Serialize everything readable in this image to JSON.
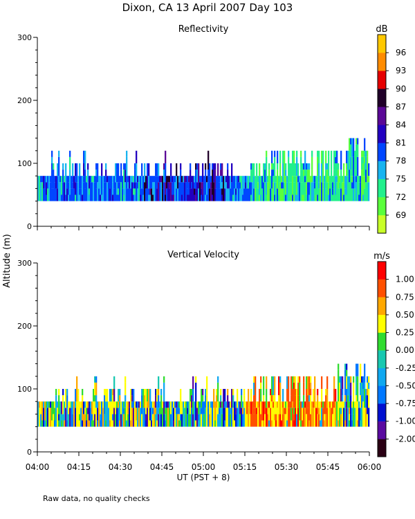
{
  "title": "Dixon, CA 13 April 2007  Day 103",
  "ylabel": "Altitude (m)",
  "xlabel": "UT  (PST + 8)",
  "footnote": "Raw data, no quality checks",
  "chart_data": [
    {
      "type": "heatmap",
      "title": "Reflectivity",
      "ylabel": "Altitude (m)",
      "xlabel": "UT  (PST + 8)",
      "xticks": [
        "04:00",
        "04:15",
        "04:30",
        "04:45",
        "05:00",
        "05:15",
        "05:30",
        "05:45",
        "06:00"
      ],
      "xlim_minutes": [
        240,
        360
      ],
      "ylim": [
        0,
        300
      ],
      "yticks": [
        0,
        100,
        200,
        300
      ],
      "colorbar": {
        "unit": "dB",
        "ticks": [
          "69",
          "72",
          "75",
          "78",
          "81",
          "84",
          "87",
          "90",
          "93",
          "96"
        ],
        "colors": [
          "#c8ff28",
          "#5aff3c",
          "#22f08c",
          "#18b4f0",
          "#0046ff",
          "#2200c0",
          "#5a0896",
          "#200028",
          "#e60000",
          "#ff8c00",
          "#ffc800"
        ]
      },
      "data_extent": {
        "base_altitude_m": 40,
        "typical_top_m": [
          80,
          120
        ],
        "max_top_m": 140
      }
    },
    {
      "type": "heatmap",
      "title": "Vertical Velocity",
      "ylabel": "Altitude (m)",
      "xlabel": "UT  (PST + 8)",
      "xticks": [
        "04:00",
        "04:15",
        "04:30",
        "04:45",
        "05:00",
        "05:15",
        "05:30",
        "05:45",
        "06:00"
      ],
      "xlim_minutes": [
        240,
        360
      ],
      "ylim": [
        0,
        300
      ],
      "yticks": [
        0,
        100,
        200,
        300
      ],
      "colorbar": {
        "unit": "m/s",
        "ticks": [
          "-2.00",
          "-1.00",
          "-0.75",
          "-0.50",
          "-0.25",
          "0.00",
          "0.25",
          "0.50",
          "0.75",
          "1.00"
        ],
        "colors": [
          "#2a0014",
          "#5a0aa0",
          "#0010d0",
          "#0078ff",
          "#10a8f0",
          "#18c8b0",
          "#30dc30",
          "#ffff00",
          "#ffa800",
          "#ff5000",
          "#ff0000"
        ]
      },
      "data_extent": {
        "base_altitude_m": 40,
        "typical_top_m": [
          80,
          120
        ],
        "max_top_m": 140
      }
    }
  ]
}
